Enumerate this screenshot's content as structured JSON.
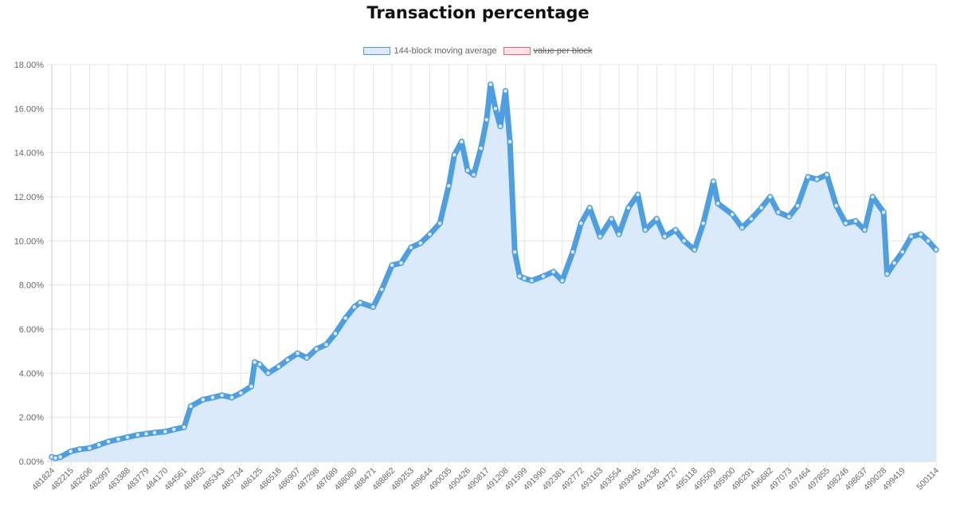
{
  "chart_data": {
    "type": "line",
    "title": "Transaction percentage",
    "legend": [
      {
        "label": "144-block moving average",
        "color": "#4f9fe0",
        "fill": "#dbeafa",
        "hidden": false
      },
      {
        "label": "value per block",
        "color": "#f2607a",
        "fill": "#fde3e8",
        "hidden": true
      }
    ],
    "legend_position": "top",
    "grid": true,
    "ylim": [
      0,
      18
    ],
    "y_ticks": [
      "0.00%",
      "2.00%",
      "4.00%",
      "6.00%",
      "8.00%",
      "10.00%",
      "12.00%",
      "14.00%",
      "16.00%",
      "18.00%"
    ],
    "x_ticks": [
      "481824",
      "482215",
      "482606",
      "482997",
      "483388",
      "483779",
      "484170",
      "484561",
      "484952",
      "485343",
      "485734",
      "486125",
      "486516",
      "486907",
      "487298",
      "487689",
      "488080",
      "488471",
      "488862",
      "489253",
      "489644",
      "490035",
      "490426",
      "490817",
      "491208",
      "491599",
      "491990",
      "492381",
      "492772",
      "493163",
      "493554",
      "493945",
      "494336",
      "494727",
      "495118",
      "495509",
      "495900",
      "496291",
      "496682",
      "497073",
      "497464",
      "497855",
      "498246",
      "498637",
      "499028",
      "499419",
      "500114"
    ],
    "series": [
      {
        "name": "144-block moving average",
        "x": [
          481824,
          481900,
          482000,
          482215,
          482400,
          482606,
          482800,
          482997,
          483200,
          483388,
          483600,
          483779,
          483950,
          484170,
          484350,
          484561,
          484700,
          484952,
          485150,
          485343,
          485550,
          485734,
          485950,
          486020,
          486125,
          486300,
          486516,
          486700,
          486907,
          487100,
          487298,
          487500,
          487689,
          487900,
          488080,
          488200,
          488471,
          488650,
          488862,
          489050,
          489253,
          489450,
          489644,
          489850,
          490035,
          490150,
          490300,
          490426,
          490550,
          490700,
          490817,
          490900,
          491000,
          491100,
          491208,
          491300,
          491400,
          491500,
          491599,
          491750,
          491990,
          492200,
          492381,
          492600,
          492772,
          492950,
          493163,
          493400,
          493554,
          493750,
          493945,
          494100,
          494336,
          494500,
          494727,
          494900,
          495118,
          495300,
          495509,
          495600,
          495900,
          496100,
          496291,
          496500,
          496682,
          496850,
          497073,
          497250,
          497464,
          497650,
          497855,
          498050,
          498246,
          498450,
          498637,
          498800,
          499028,
          499100,
          499250,
          499419,
          499600,
          499800,
          499950,
          500114
        ],
        "values": [
          0.2,
          0.15,
          0.2,
          0.45,
          0.55,
          0.6,
          0.75,
          0.9,
          1.0,
          1.1,
          1.2,
          1.25,
          1.3,
          1.35,
          1.45,
          1.55,
          2.5,
          2.8,
          2.9,
          3.0,
          2.9,
          3.1,
          3.4,
          4.5,
          4.4,
          4.0,
          4.3,
          4.6,
          4.9,
          4.7,
          5.1,
          5.3,
          5.8,
          6.5,
          7.0,
          7.2,
          7.0,
          7.8,
          8.9,
          9.0,
          9.7,
          9.9,
          10.3,
          10.8,
          12.5,
          13.9,
          14.5,
          13.2,
          13.0,
          14.2,
          15.5,
          17.1,
          16.0,
          15.2,
          16.8,
          14.5,
          9.5,
          8.4,
          8.3,
          8.2,
          8.4,
          8.6,
          8.2,
          9.5,
          10.8,
          11.5,
          10.2,
          11.0,
          10.3,
          11.5,
          12.1,
          10.5,
          11.0,
          10.2,
          10.5,
          10.0,
          9.6,
          10.8,
          12.7,
          11.7,
          11.2,
          10.6,
          11.0,
          11.5,
          12.0,
          11.3,
          11.1,
          11.6,
          12.9,
          12.8,
          13.0,
          11.6,
          10.8,
          10.9,
          10.5,
          12.0,
          11.3,
          8.5,
          9.0,
          9.5,
          10.2,
          10.3,
          10.0,
          9.6
        ]
      },
      {
        "name": "value per block",
        "hidden": true,
        "values": []
      }
    ]
  }
}
